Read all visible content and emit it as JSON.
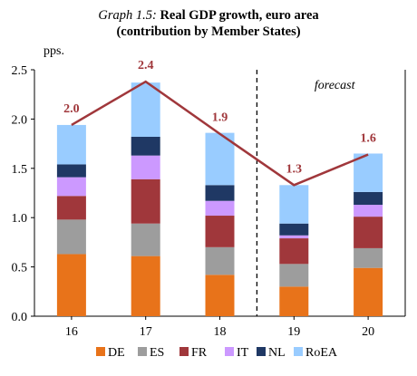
{
  "chart_data": {
    "type": "bar",
    "stacked": true,
    "title_prefix": "Graph 1.5:",
    "title_main": "Real GDP growth, euro area",
    "subtitle": "(contribution by Member States)",
    "ylabel": "pps.",
    "ylim": [
      0,
      2.5
    ],
    "yticks": [
      "0.0",
      "0.5",
      "1.0",
      "1.5",
      "2.0",
      "2.5"
    ],
    "categories": [
      "16",
      "17",
      "18",
      "19",
      "20"
    ],
    "series": [
      {
        "name": "DE",
        "color": "#e8731a",
        "values": [
          0.63,
          0.61,
          0.42,
          0.3,
          0.49
        ]
      },
      {
        "name": "ES",
        "color": "#9d9d9d",
        "values": [
          0.35,
          0.33,
          0.28,
          0.23,
          0.2
        ]
      },
      {
        "name": "FR",
        "color": "#a0373b",
        "values": [
          0.24,
          0.45,
          0.32,
          0.26,
          0.32
        ]
      },
      {
        "name": "IT",
        "color": "#cc99ff",
        "values": [
          0.19,
          0.24,
          0.15,
          0.03,
          0.12
        ]
      },
      {
        "name": "NL",
        "color": "#1f3864",
        "values": [
          0.13,
          0.19,
          0.16,
          0.12,
          0.13
        ]
      },
      {
        "name": "RoEA",
        "color": "#99ccff",
        "values": [
          0.4,
          0.55,
          0.53,
          0.39,
          0.39
        ]
      }
    ],
    "total_line": {
      "color": "#a0373b",
      "values": [
        1.94,
        2.38,
        1.85,
        1.33,
        1.64
      ]
    },
    "data_labels": [
      "2.0",
      "2.4",
      "1.9",
      "1.3",
      "1.6"
    ],
    "forecast_label": "forecast",
    "forecast_divider_after": "18",
    "legend_position": "bottom"
  }
}
